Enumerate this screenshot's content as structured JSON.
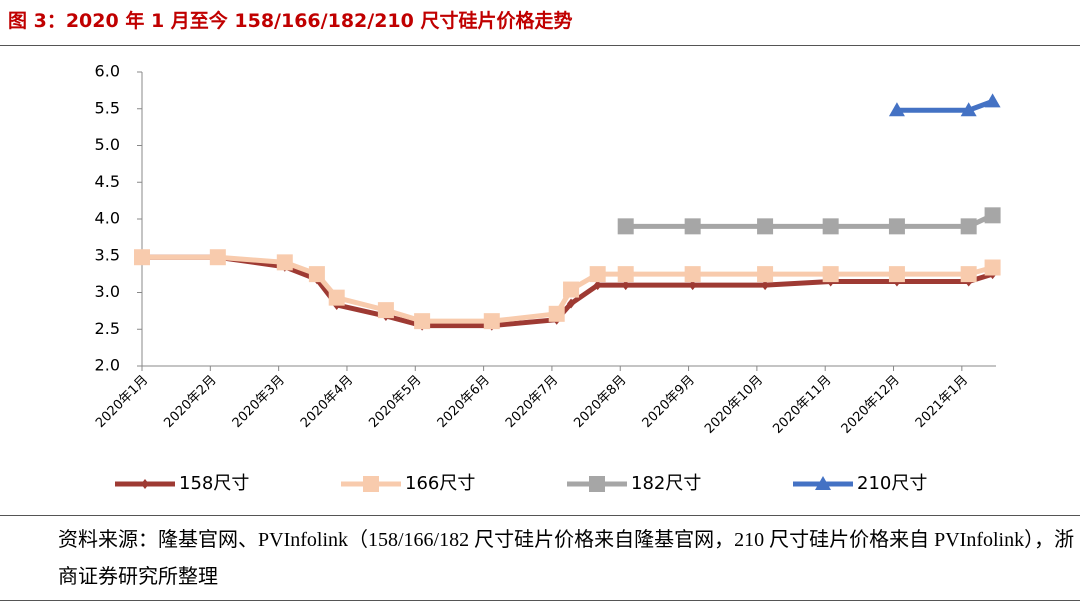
{
  "chart_data": {
    "type": "line",
    "title": "图 3：2020 年 1 月至今 158/166/182/210 尺寸硅片价格走势",
    "source": "资料来源：隆基官网、PVInfolink（158/166/182 尺寸硅片价格来自隆基官网，210 尺寸硅片价格来自 PVInfolink），浙商证券研究所整理",
    "x": [
      0,
      1.11,
      2.09,
      2.56,
      2.85,
      3.57,
      4.1,
      5.12,
      6.07,
      6.28,
      6.67,
      7.08,
      8.06,
      9.12,
      10.08,
      11.05,
      12.1,
      12.45
    ],
    "xlim": [
      0,
      12.5
    ],
    "xticks": [
      {
        "value": 0,
        "label": "2020年1月"
      },
      {
        "value": 1,
        "label": "2020年2月"
      },
      {
        "value": 2,
        "label": "2020年3月"
      },
      {
        "value": 3,
        "label": "2020年4月"
      },
      {
        "value": 4,
        "label": "2020年5月"
      },
      {
        "value": 5,
        "label": "2020年6月"
      },
      {
        "value": 6,
        "label": "2020年7月"
      },
      {
        "value": 7,
        "label": "2020年8月"
      },
      {
        "value": 8,
        "label": "2020年9月"
      },
      {
        "value": 9,
        "label": "2020年10月"
      },
      {
        "value": 10,
        "label": "2020年11月"
      },
      {
        "value": 11,
        "label": "2020年12月"
      },
      {
        "value": 12,
        "label": "2021年1月"
      }
    ],
    "ylim": [
      2,
      6
    ],
    "yticks": [
      {
        "value": 2,
        "label": "2.0"
      },
      {
        "value": 2.5,
        "label": "2.5"
      },
      {
        "value": 3,
        "label": "3.0"
      },
      {
        "value": 3.5,
        "label": "3.5"
      },
      {
        "value": 4,
        "label": "4.0"
      },
      {
        "value": 4.5,
        "label": "4.5"
      },
      {
        "value": 5,
        "label": "5.0"
      },
      {
        "value": 5.5,
        "label": "5.5"
      },
      {
        "value": 6,
        "label": "6.0"
      }
    ],
    "series": [
      {
        "name": "158尺寸",
        "color": "#9e3a33",
        "marker": "diamond",
        "values": [
          3.48,
          3.48,
          3.35,
          3.18,
          2.83,
          2.68,
          2.55,
          2.55,
          2.63,
          2.85,
          3.1,
          3.1,
          3.1,
          3.1,
          3.15,
          3.15,
          3.15,
          3.25
        ]
      },
      {
        "name": "166尺寸",
        "color": "#f8cbad",
        "marker": "square",
        "values": [
          3.48,
          3.48,
          3.41,
          3.25,
          2.93,
          2.76,
          2.61,
          2.61,
          2.71,
          3.04,
          3.25,
          3.25,
          3.25,
          3.25,
          3.25,
          3.25,
          3.25,
          3.34
        ]
      },
      {
        "name": "182尺寸",
        "color": "#a6a6a6",
        "marker": "square",
        "values": [
          null,
          null,
          null,
          null,
          null,
          null,
          null,
          null,
          null,
          null,
          null,
          3.9,
          3.9,
          3.9,
          3.9,
          3.9,
          3.9,
          4.05
        ]
      },
      {
        "name": "210尺寸",
        "color": "#4472c4",
        "marker": "triangle",
        "values": [
          null,
          null,
          null,
          null,
          null,
          null,
          null,
          null,
          null,
          null,
          null,
          null,
          null,
          null,
          null,
          5.48,
          5.48,
          5.6
        ]
      }
    ]
  }
}
